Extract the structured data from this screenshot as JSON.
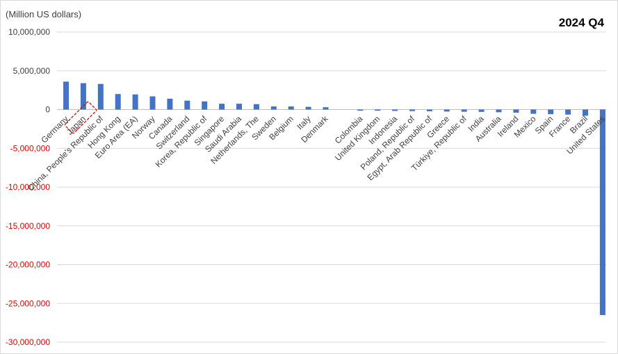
{
  "chart_data": {
    "type": "bar",
    "title": "2024 Q4",
    "ylabel": "(Million US dollars)",
    "xlabel": "",
    "ylim": [
      -30000000,
      10000000
    ],
    "yticks": [
      "10,000,000",
      "5,000,000",
      "0",
      "-5,000,000",
      "-10,000,000",
      "-15,000,000",
      "-20,000,000",
      "-25,000,000",
      "-30,000,000"
    ],
    "ytick_values": [
      10000000,
      5000000,
      0,
      -5000000,
      -10000000,
      -15000000,
      -20000000,
      -25000000,
      -30000000
    ],
    "grid": true,
    "highlight": "Japan",
    "colors": {
      "bar": "#4472c4",
      "positive_tick": "#404040",
      "negative_tick": "#e00000",
      "highlight_box": "#e00000",
      "grid": "#d9d9d9"
    },
    "categories": [
      "Germany",
      "Japan",
      "China, People's Republic of",
      "Hong Kong",
      "Euro Area (EA)",
      "Norway",
      "Canada",
      "Switzerland",
      "Korea, Republic of",
      "Singapore",
      "Saudi Arabia",
      "Netherlands, The",
      "Sweden",
      "Belgium",
      "Italy",
      "Denmark",
      "",
      "Colombia",
      "United Kingdom",
      "Indonesia",
      "Poland, Republic of",
      "Egypt, Arab Republic of",
      "Greece",
      "Türkiye, Republic of",
      "India",
      "Australia",
      "Ireland",
      "Mexico",
      "Spain",
      "France",
      "Brazil",
      "United States"
    ],
    "values": [
      3600000,
      3400000,
      3300000,
      2000000,
      1950000,
      1700000,
      1400000,
      1150000,
      1050000,
      750000,
      750000,
      700000,
      400000,
      400000,
      350000,
      300000,
      null,
      -150000,
      -150000,
      -180000,
      -200000,
      -230000,
      -260000,
      -280000,
      -300000,
      -350000,
      -400000,
      -550000,
      -600000,
      -650000,
      -800000,
      -26500000
    ]
  }
}
